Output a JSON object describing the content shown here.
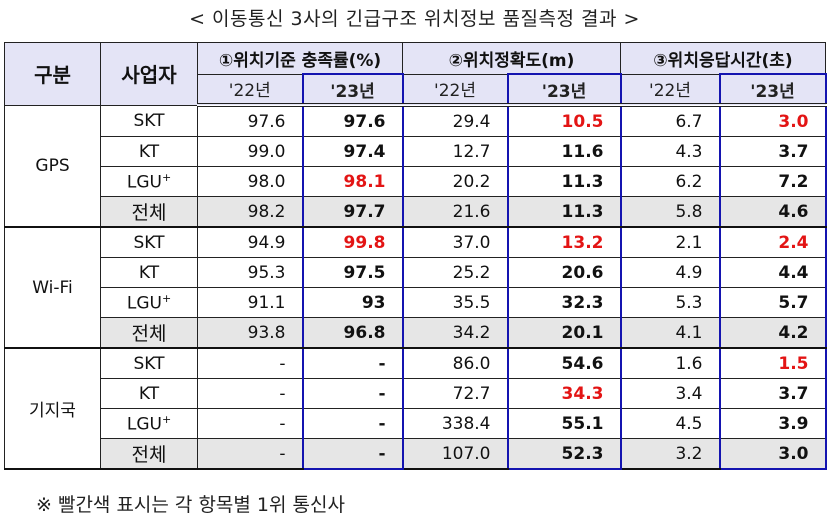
{
  "title": "< 이동통신 3사의 긴급구조 위치정보 품질측정 결과 >",
  "header": {
    "category": "구분",
    "carrier": "사업자",
    "metrics": [
      {
        "label": "①위치기준 충족률(%)"
      },
      {
        "label": "②위치정확도(m)"
      },
      {
        "label": "③위치응답시간(초)"
      }
    ],
    "year_prev": "'22년",
    "year_curr": "'23년"
  },
  "groups": [
    {
      "name": "GPS",
      "rows": [
        {
          "carrier": "SKT",
          "values": [
            "97.6",
            "97.6",
            "29.4",
            "10.5",
            "6.7",
            "3.0"
          ],
          "red": [
            false,
            false,
            false,
            true,
            false,
            true
          ]
        },
        {
          "carrier": "KT",
          "values": [
            "99.0",
            "97.4",
            "12.7",
            "11.6",
            "4.3",
            "3.7"
          ],
          "red": [
            false,
            false,
            false,
            false,
            false,
            false
          ]
        },
        {
          "carrier": "LGU",
          "carrier_sup": "+",
          "values": [
            "98.0",
            "98.1",
            "20.2",
            "11.3",
            "6.2",
            "7.2"
          ],
          "red": [
            false,
            true,
            false,
            false,
            false,
            false
          ]
        },
        {
          "carrier": "전체",
          "values": [
            "98.2",
            "97.7",
            "21.6",
            "11.3",
            "5.8",
            "4.6"
          ],
          "red": [
            false,
            false,
            false,
            false,
            false,
            false
          ]
        }
      ]
    },
    {
      "name": "Wi-Fi",
      "rows": [
        {
          "carrier": "SKT",
          "values": [
            "94.9",
            "99.8",
            "37.0",
            "13.2",
            "2.1",
            "2.4"
          ],
          "red": [
            false,
            true,
            false,
            true,
            false,
            true
          ]
        },
        {
          "carrier": "KT",
          "values": [
            "95.3",
            "97.5",
            "25.2",
            "20.6",
            "4.9",
            "4.4"
          ],
          "red": [
            false,
            false,
            false,
            false,
            false,
            false
          ]
        },
        {
          "carrier": "LGU",
          "carrier_sup": "+",
          "values": [
            "91.1",
            "93",
            "35.5",
            "32.3",
            "5.3",
            "5.7"
          ],
          "red": [
            false,
            false,
            false,
            false,
            false,
            false
          ]
        },
        {
          "carrier": "전체",
          "values": [
            "93.8",
            "96.8",
            "34.2",
            "20.1",
            "4.1",
            "4.2"
          ],
          "red": [
            false,
            false,
            false,
            false,
            false,
            false
          ]
        }
      ]
    },
    {
      "name": "기지국",
      "rows": [
        {
          "carrier": "SKT",
          "values": [
            "-",
            "-",
            "86.0",
            "54.6",
            "1.6",
            "1.5"
          ],
          "red": [
            false,
            false,
            false,
            false,
            false,
            true
          ]
        },
        {
          "carrier": "KT",
          "values": [
            "-",
            "-",
            "72.7",
            "34.3",
            "3.4",
            "3.7"
          ],
          "red": [
            false,
            false,
            false,
            true,
            false,
            false
          ]
        },
        {
          "carrier": "LGU",
          "carrier_sup": "+",
          "values": [
            "-",
            "-",
            "338.4",
            "55.1",
            "4.5",
            "3.9"
          ],
          "red": [
            false,
            false,
            false,
            false,
            false,
            false
          ]
        },
        {
          "carrier": "전체",
          "values": [
            "-",
            "-",
            "107.0",
            "52.3",
            "3.2",
            "3.0"
          ],
          "red": [
            false,
            false,
            false,
            false,
            false,
            false
          ]
        }
      ]
    }
  ],
  "note": "※ 빨간색 표시는 각 항목별 1위 통신사",
  "colors": {
    "header_bg": "#e4e4f6",
    "total_bg": "#e6e6e6",
    "highlight_border": "#1414b0",
    "best_red": "#e31414"
  }
}
